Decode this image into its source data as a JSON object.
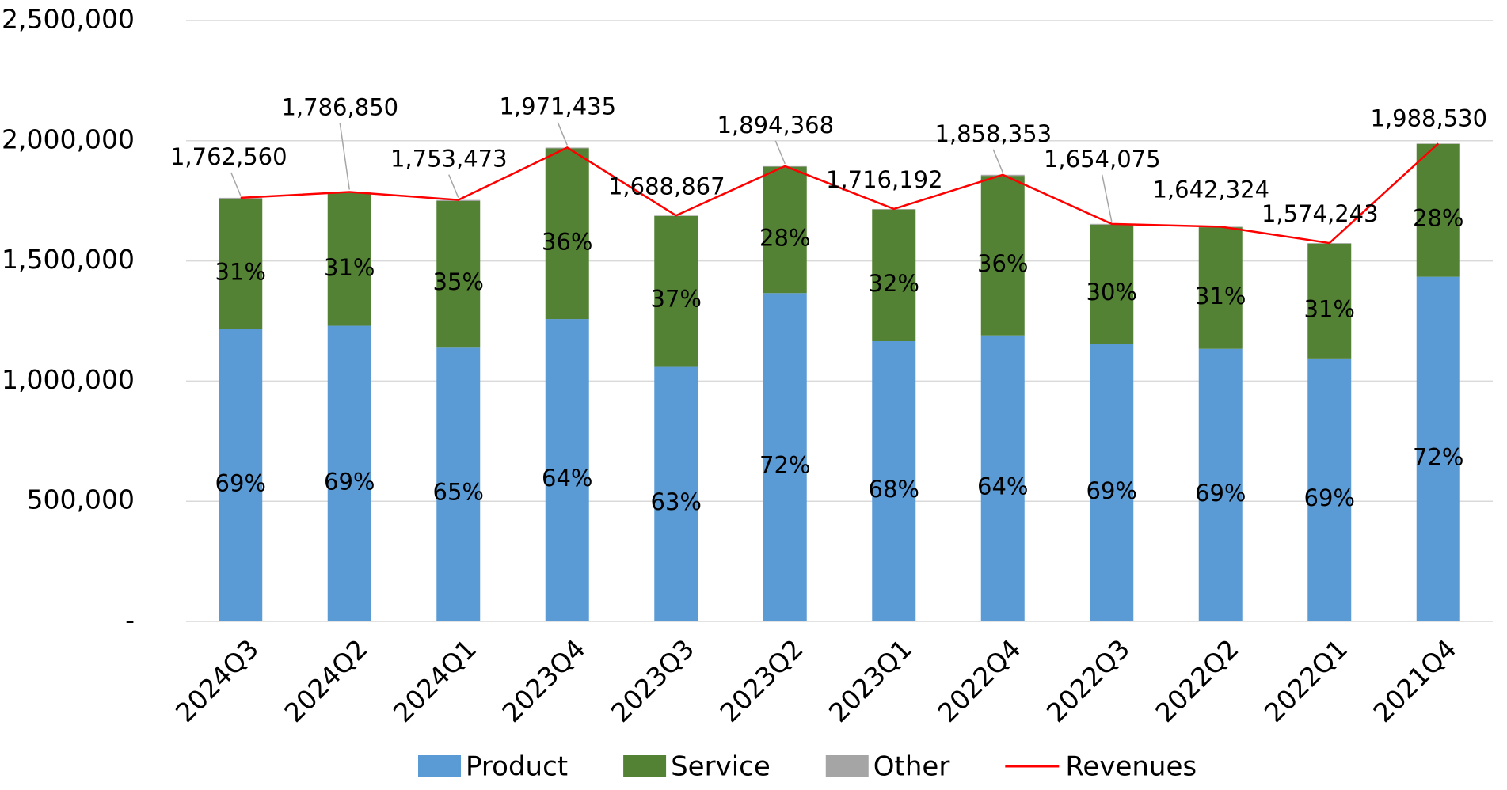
{
  "chart_data": {
    "type": "stacked_bar_line",
    "categories": [
      "2024Q3",
      "2024Q2",
      "2024Q1",
      "2023Q4",
      "2023Q3",
      "2023Q2",
      "2023Q1",
      "2022Q4",
      "2022Q3",
      "2022Q2",
      "2022Q1",
      "2021Q4"
    ],
    "series": [
      {
        "name": "Product",
        "color": "#5b9bd5",
        "type": "bar",
        "values": [
          1216000,
          1230000,
          1142000,
          1258000,
          1062000,
          1366000,
          1166000,
          1190000,
          1154000,
          1134000,
          1094000,
          1434000
        ],
        "share_labels": [
          "69%",
          "69%",
          "65%",
          "64%",
          "63%",
          "72%",
          "68%",
          "64%",
          "69%",
          "69%",
          "69%",
          "72%"
        ]
      },
      {
        "name": "Service",
        "color": "#548235",
        "type": "bar",
        "values": [
          543000,
          552000,
          607000,
          710000,
          625000,
          526000,
          548000,
          664000,
          497000,
          506000,
          478000,
          553000
        ],
        "share_labels": [
          "31%",
          "31%",
          "35%",
          "36%",
          "37%",
          "28%",
          "32%",
          "36%",
          "30%",
          "31%",
          "31%",
          "28%"
        ]
      },
      {
        "name": "Other",
        "color": "#a5a5a5",
        "type": "bar",
        "values": [
          3500,
          4800,
          4500,
          3400,
          1900,
          2400,
          2200,
          4400,
          3100,
          2300,
          2200,
          1500
        ]
      },
      {
        "name": "Revenues",
        "color": "#ff0000",
        "type": "line",
        "values": [
          1762560,
          1786850,
          1753473,
          1971435,
          1688867,
          1894368,
          1716192,
          1858353,
          1654075,
          1642324,
          1574243,
          1988530
        ],
        "value_labels": [
          "1,762,560",
          "1,786,850",
          "1,753,473",
          "1,971,435",
          "1,688,867",
          "1,894,368",
          "1,716,192",
          "1,858,353",
          "1,654,075",
          "1,642,324",
          "1,574,243",
          "1,988,530"
        ]
      }
    ],
    "ylim": [
      0,
      2500000
    ],
    "yticks": [
      {
        "value": 0,
        "label": "-"
      },
      {
        "value": 500000,
        "label": "500,000"
      },
      {
        "value": 1000000,
        "label": "1,000,000"
      },
      {
        "value": 1500000,
        "label": "1,500,000"
      },
      {
        "value": 2000000,
        "label": "2,000,000"
      },
      {
        "value": 2500000,
        "label": "2,500,000"
      }
    ],
    "grid": true,
    "legend": "bottom"
  }
}
